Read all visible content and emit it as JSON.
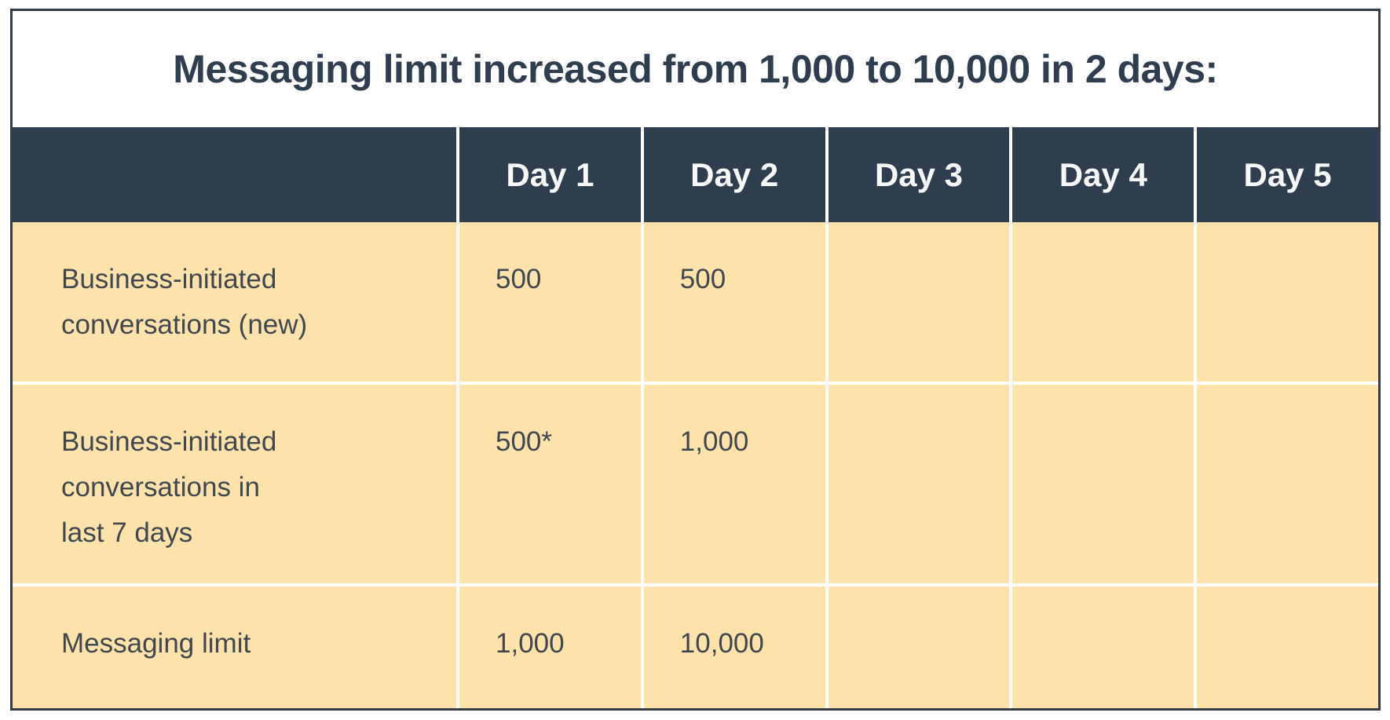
{
  "title": "Messaging limit increased from 1,000 to 10,000 in 2 days:",
  "table": {
    "columns": [
      "",
      "Day 1",
      "Day 2",
      "Day 3",
      "Day 4",
      "Day 5"
    ],
    "rows": [
      {
        "label": "Business-initiated\nconversations (new)",
        "values": [
          "500",
          "500",
          "",
          "",
          ""
        ]
      },
      {
        "label": "Business-initiated\nconversations in\nlast 7 days",
        "values": [
          "500*",
          "1,000",
          "",
          "",
          ""
        ]
      },
      {
        "label": "Messaging limit",
        "values": [
          "1,000",
          "10,000",
          "",
          "",
          ""
        ]
      }
    ]
  },
  "colors": {
    "header_background": "#2e3e4f",
    "header_text": "#f7f8f8",
    "body_background": "#fde2ab",
    "body_text": "#40474e",
    "title_text": "#2e3e4f",
    "border": "#333d46",
    "separator": "#ffffff"
  },
  "chart_data": {
    "type": "table",
    "title": "Messaging limit increased from 1,000 to 10,000 in 2 days:",
    "columns": [
      "",
      "Day 1",
      "Day 2",
      "Day 3",
      "Day 4",
      "Day 5"
    ],
    "rows": [
      [
        "Business-initiated conversations (new)",
        "500",
        "500",
        "",
        "",
        ""
      ],
      [
        "Business-initiated conversations in last 7 days",
        "500*",
        "1,000",
        "",
        "",
        ""
      ],
      [
        "Messaging limit",
        "1,000",
        "10,000",
        "",
        "",
        ""
      ]
    ],
    "notes": "Asterisk on Day 1 value of row 2; Days 3-5 cells are empty"
  }
}
